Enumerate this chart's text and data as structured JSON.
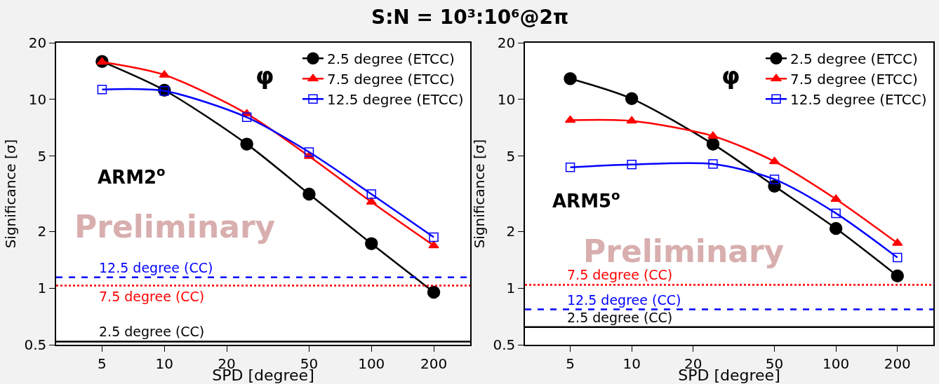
{
  "chart_data": [
    {
      "type": "line",
      "title": "S:N = 10³:10⁶@2π",
      "xlabel": "SPD [degree]",
      "ylabel": "Significance [σ]",
      "log": "xy",
      "xlim": [
        3,
        300
      ],
      "ylim": [
        0.5,
        20
      ],
      "xticks": [
        5,
        10,
        20,
        50,
        100,
        200
      ],
      "yticks": [
        0.5,
        1,
        2,
        5,
        10,
        20
      ],
      "legend": "top right",
      "x": [
        5,
        10,
        25,
        50,
        100,
        200
      ],
      "series": [
        {
          "name": "2.5 degree (ETCC)",
          "color": "#000000",
          "marker": "circle",
          "values": [
            15.9,
            11.2,
            5.8,
            3.15,
            1.72,
            0.95
          ]
        },
        {
          "name": "7.5 degree (ETCC)",
          "color": "#ff0000",
          "marker": "triangle",
          "values": [
            15.8,
            13.5,
            8.4,
            5.0,
            2.86,
            1.68
          ]
        },
        {
          "name": "12.5 degree (ETCC)",
          "color": "#0000ff",
          "marker": "square",
          "values": [
            11.3,
            11.1,
            8.05,
            5.26,
            3.15,
            1.86
          ]
        }
      ],
      "ref_lines": [
        {
          "axis": "y",
          "value": 1.14,
          "label": "12.5 degree (CC)",
          "color": "#0000ff",
          "line_style": "dashed"
        },
        {
          "axis": "y",
          "value": 1.03,
          "label": "7.5 degree (CC)",
          "color": "#ff0000",
          "line_style": "dotted"
        },
        {
          "axis": "y",
          "value": 0.52,
          "label": "2.5 degree (CC)",
          "color": "#000000",
          "line_style": "solid"
        }
      ],
      "annotations": [
        "ARM2$^{o}$",
        "Preliminary",
        "φ"
      ]
    },
    {
      "type": "line",
      "xlabel": "SPD [degree]",
      "ylabel": "Significance [σ]",
      "log": "xy",
      "xlim": [
        3,
        300
      ],
      "ylim": [
        0.5,
        20
      ],
      "xticks": [
        5,
        10,
        20,
        50,
        100,
        200
      ],
      "yticks": [
        0.5,
        1,
        2,
        5,
        10,
        20
      ],
      "legend": "top right",
      "x": [
        5,
        10,
        25,
        50,
        100,
        200
      ],
      "series": [
        {
          "name": "2.5 degree (ETCC)",
          "color": "#000000",
          "marker": "circle",
          "values": [
            12.9,
            10.1,
            5.8,
            3.47,
            2.07,
            1.16
          ]
        },
        {
          "name": "7.5 degree (ETCC)",
          "color": "#ff0000",
          "marker": "triangle",
          "values": [
            7.77,
            7.7,
            6.4,
            4.69,
            2.96,
            1.73
          ]
        },
        {
          "name": "12.5 degree (ETCC)",
          "color": "#0000ff",
          "marker": "square",
          "values": [
            4.37,
            4.52,
            4.55,
            3.77,
            2.49,
            1.45
          ]
        }
      ],
      "ref_lines": [
        {
          "axis": "y",
          "value": 1.04,
          "label": "7.5 degree (CC)",
          "color": "#ff0000",
          "line_style": "dotted"
        },
        {
          "axis": "y",
          "value": 0.77,
          "label": "12.5 degree (CC)",
          "color": "#0000ff",
          "line_style": "dashed"
        },
        {
          "axis": "y",
          "value": 0.62,
          "label": "2.5 degree (CC)",
          "color": "#000000",
          "line_style": "solid"
        }
      ],
      "annotations": [
        "ARM5$^{o}$",
        "Preliminary",
        "φ"
      ]
    }
  ]
}
